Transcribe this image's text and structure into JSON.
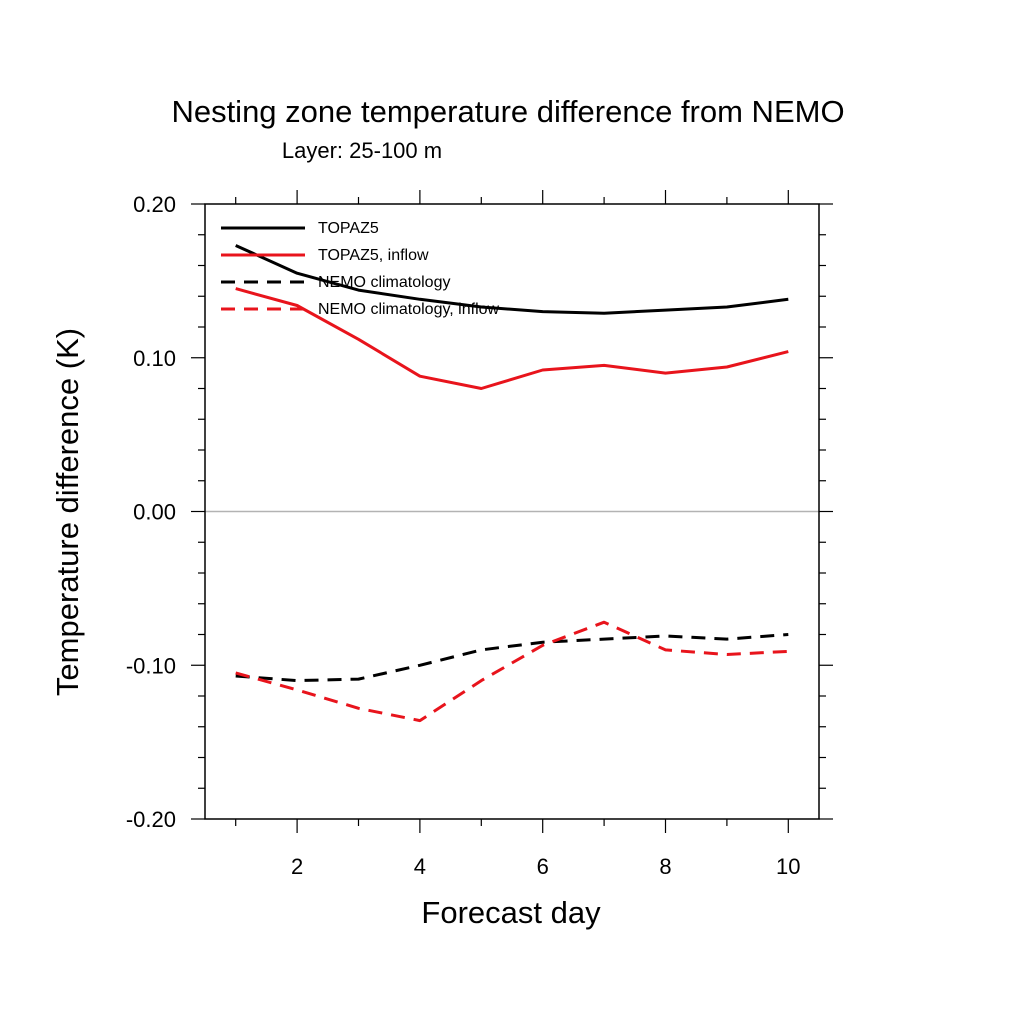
{
  "chart_data": {
    "type": "line",
    "title": "Nesting zone temperature difference from NEMO",
    "subtitle": "Layer: 25-100 m",
    "xlabel": "Forecast day",
    "ylabel": "Temperature difference (K)",
    "xlim": [
      0.5,
      10.5
    ],
    "ylim": [
      -0.2,
      0.2
    ],
    "x_ticks": [
      2,
      4,
      6,
      8,
      10
    ],
    "x_tick_labels": [
      "2",
      "4",
      "6",
      "8",
      "10"
    ],
    "y_ticks": [
      -0.2,
      -0.1,
      0.0,
      0.1,
      0.2
    ],
    "y_tick_labels": [
      "-0.20",
      "-0.10",
      "0.00",
      "0.10",
      "0.20"
    ],
    "zero_line": true,
    "legend_position": "top-left",
    "x": [
      1,
      2,
      3,
      4,
      5,
      6,
      7,
      8,
      9,
      10
    ],
    "series": [
      {
        "name": "TOPAZ5",
        "color": "#000000",
        "dash": "solid",
        "values": [
          0.173,
          0.155,
          0.144,
          0.138,
          0.133,
          0.13,
          0.129,
          0.131,
          0.133,
          0.138
        ]
      },
      {
        "name": "TOPAZ5, inflow",
        "color": "#e8141c",
        "dash": "solid",
        "values": [
          0.145,
          0.134,
          0.112,
          0.088,
          0.08,
          0.092,
          0.095,
          0.09,
          0.094,
          0.104
        ]
      },
      {
        "name": "NEMO climatology",
        "color": "#000000",
        "dash": "dashed",
        "values": [
          -0.107,
          -0.11,
          -0.109,
          -0.1,
          -0.09,
          -0.085,
          -0.083,
          -0.081,
          -0.083,
          -0.08
        ]
      },
      {
        "name": "NEMO climatology, inflow",
        "color": "#e8141c",
        "dash": "dashed",
        "values": [
          -0.105,
          -0.116,
          -0.128,
          -0.136,
          -0.11,
          -0.087,
          -0.072,
          -0.09,
          -0.093,
          -0.091
        ]
      }
    ]
  }
}
